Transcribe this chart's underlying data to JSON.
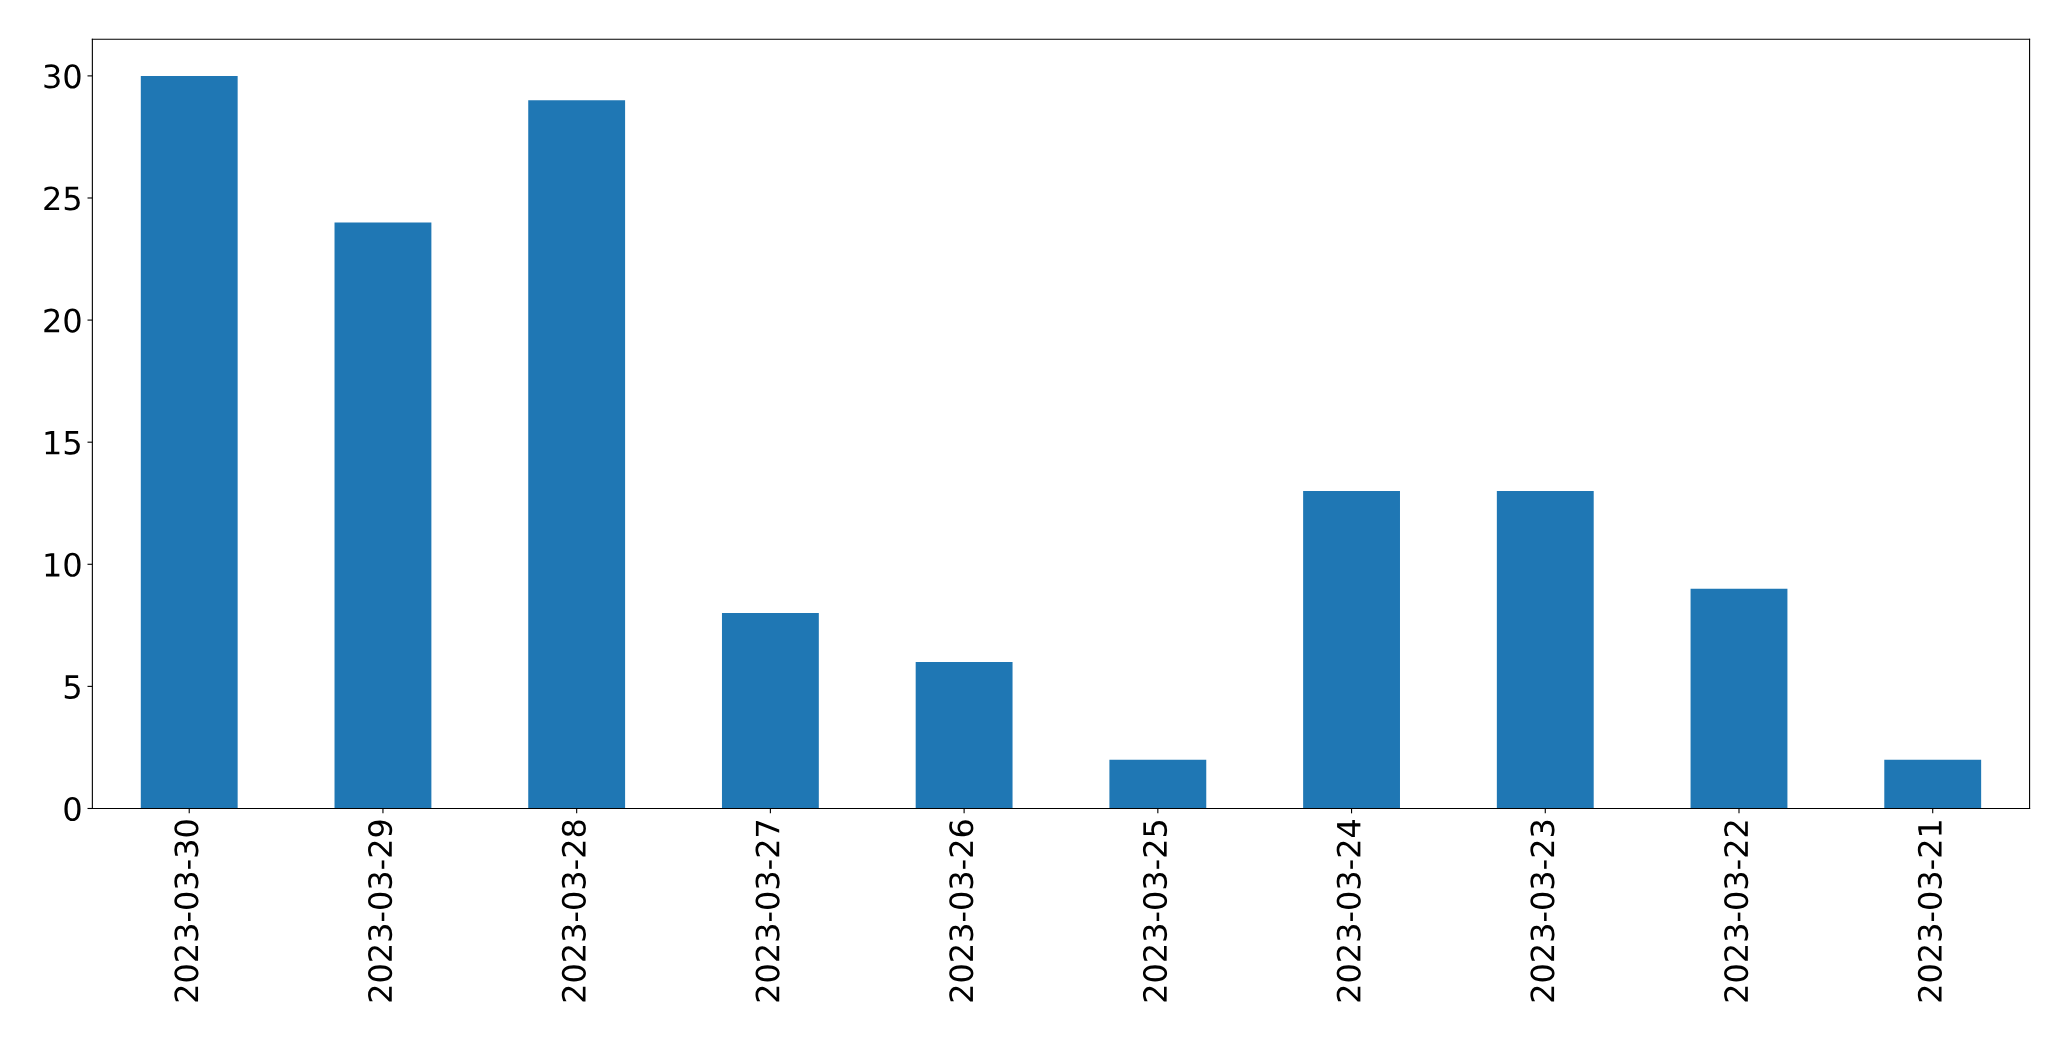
{
  "chart_data": {
    "type": "bar",
    "categories": [
      "2023-03-30",
      "2023-03-29",
      "2023-03-28",
      "2023-03-27",
      "2023-03-26",
      "2023-03-25",
      "2023-03-24",
      "2023-03-23",
      "2023-03-22",
      "2023-03-21"
    ],
    "values": [
      30,
      24,
      29,
      8,
      6,
      2,
      13,
      13,
      9,
      2
    ],
    "color": "#1f77b4",
    "ylim": [
      0,
      31.5
    ],
    "yticks": [
      0,
      5,
      10,
      15,
      20,
      25,
      30
    ],
    "grid": false
  }
}
